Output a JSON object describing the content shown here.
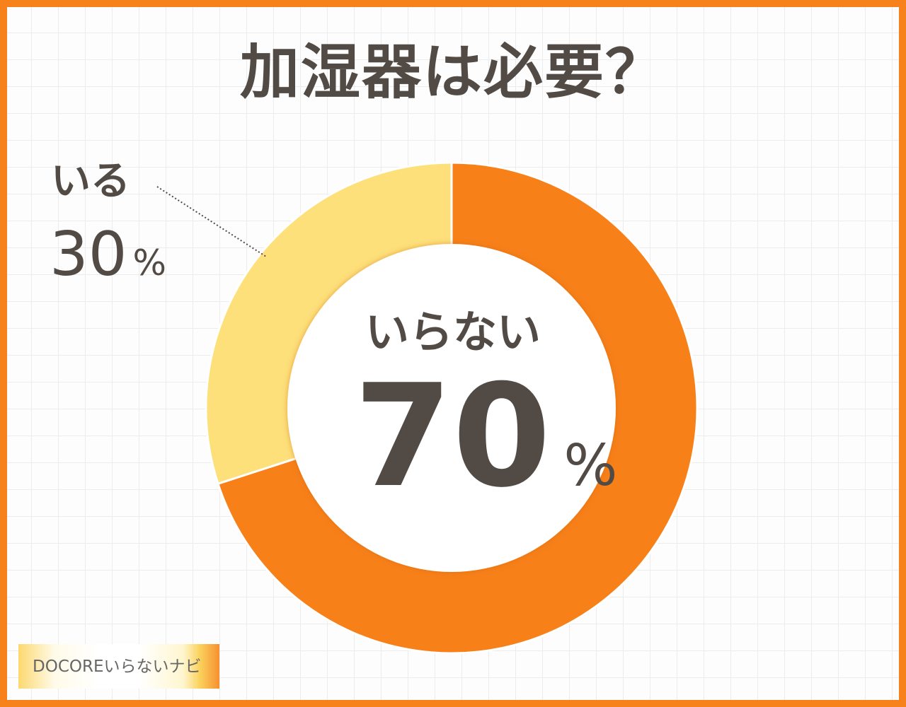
{
  "title": "加湿器は必要？",
  "chart_data": {
    "type": "pie",
    "donut": true,
    "title": "加湿器は必要？",
    "categories": [
      "いらない",
      "いる"
    ],
    "values": [
      70,
      30
    ],
    "unit": "%",
    "colors": [
      "#f78019",
      "#fde07a"
    ],
    "labels": [
      {
        "category": "いらない",
        "value": "70",
        "unit": "%"
      },
      {
        "category": "いる",
        "value": "30",
        "unit": "%"
      }
    ]
  },
  "colors": {
    "border": "#f7821b",
    "text": "#524a44"
  },
  "logo": "DOCOREいらないナビ"
}
